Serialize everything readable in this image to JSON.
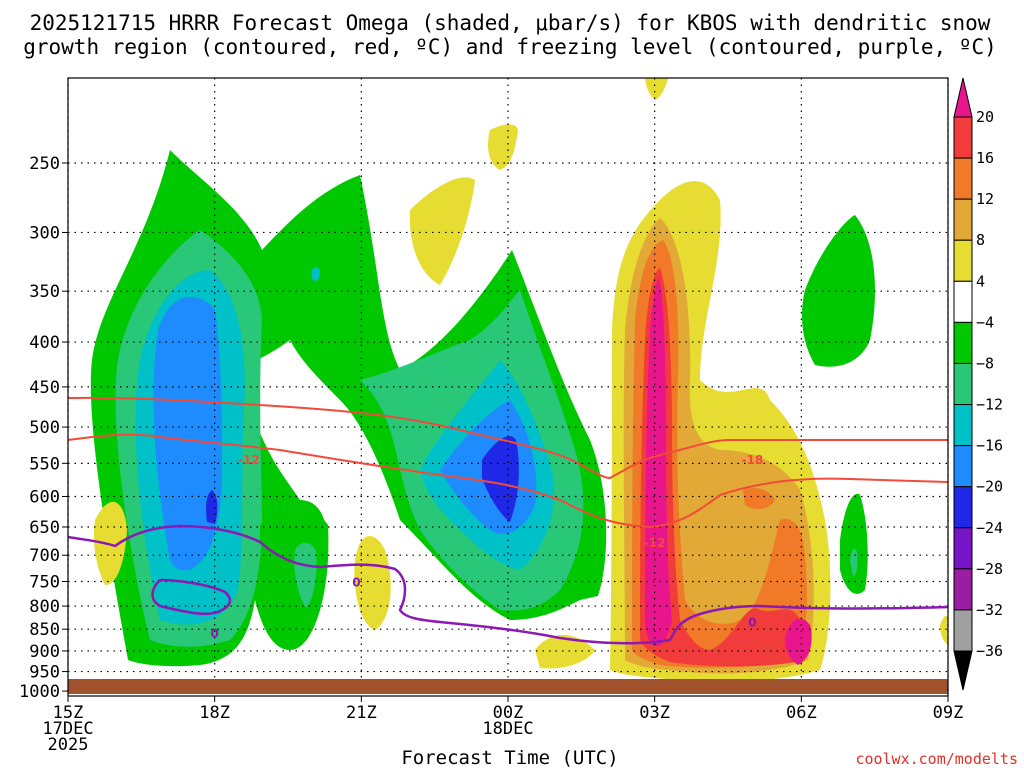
{
  "chart_data": {
    "type": "contour",
    "title": [
      "2025121715 HRRR Forecast Omega (shaded, μbar/s) for KBOS with dendritic snow",
      "growth region (contoured, red, ºC) and freezing level (contoured, purple, ºC)"
    ],
    "xlabel": "Forecast Time (UTC)",
    "ylabel": "",
    "credit": "coolwx.com/modelts",
    "x_ticks": [
      {
        "hour": 0,
        "lines": [
          "15Z",
          "17DEC",
          "2025"
        ]
      },
      {
        "hour": 3,
        "lines": [
          "18Z"
        ]
      },
      {
        "hour": 6,
        "lines": [
          "21Z"
        ]
      },
      {
        "hour": 9,
        "lines": [
          "00Z",
          "18DEC"
        ]
      },
      {
        "hour": 12,
        "lines": [
          "03Z"
        ]
      },
      {
        "hour": 15,
        "lines": [
          "06Z"
        ]
      },
      {
        "hour": 18,
        "lines": [
          "09Z"
        ]
      }
    ],
    "xlim": [
      0,
      18
    ],
    "y_ticks": [
      250,
      300,
      350,
      400,
      450,
      500,
      550,
      600,
      650,
      700,
      750,
      800,
      850,
      900,
      950,
      1000
    ],
    "ylim": [
      200,
      1013
    ],
    "yscale": "log",
    "colorbar": {
      "levels": [
        -36,
        -32,
        -28,
        -24,
        -20,
        -16,
        -12,
        -8,
        -4,
        4,
        8,
        12,
        16,
        20
      ],
      "labels": [
        "20",
        "16",
        "12",
        "8",
        "4",
        "−4",
        "−8",
        "−12",
        "−16",
        "−20",
        "−24",
        "−28",
        "−32",
        "−36"
      ],
      "colors": [
        {
          "range": "> 20",
          "color": "#e8158c"
        },
        {
          "range": "16 to 20",
          "color": "#f23c3c"
        },
        {
          "range": "12 to 16",
          "color": "#f07a28"
        },
        {
          "range": "8 to 12",
          "color": "#e2a936"
        },
        {
          "range": "4 to 8",
          "color": "#e6dc32"
        },
        {
          "range": "-4 to 4",
          "color": "#ffffff"
        },
        {
          "range": "-8 to -4",
          "color": "#00c800"
        },
        {
          "range": "-12 to -8",
          "color": "#28c878"
        },
        {
          "range": "-16 to -12",
          "color": "#00c0c8"
        },
        {
          "range": "-20 to -16",
          "color": "#1e8cff"
        },
        {
          "range": "-24 to -20",
          "color": "#1e28e6"
        },
        {
          "range": "-28 to -24",
          "color": "#7814c8"
        },
        {
          "range": "-32 to -28",
          "color": "#9c1ea0"
        },
        {
          "range": "-36 to -32",
          "color": "#a0a0a0"
        },
        {
          "range": "< -36",
          "color": "#000000"
        }
      ]
    },
    "contour_labels": [
      {
        "text": "-12",
        "color": "#f24a3a",
        "hour": 3.7,
        "p": 545
      },
      {
        "text": "-12",
        "color": "#f24a3a",
        "hour": 12.0,
        "p": 678
      },
      {
        "text": "-18",
        "color": "#f24a3a",
        "hour": 14.0,
        "p": 545
      },
      {
        "text": "0",
        "color": "#8c19b4",
        "hour": 5.9,
        "p": 752
      },
      {
        "text": "0",
        "color": "#8c19b4",
        "hour": 3.0,
        "p": 860
      },
      {
        "text": "0",
        "color": "#8c19b4",
        "hour": 14.0,
        "p": 835
      }
    ],
    "surface_color": "#a0522d",
    "omega_features": [
      {
        "kind": "descent column",
        "hour_range": [
          1.2,
          6.0
        ],
        "p_range": [
          260,
          950
        ],
        "min_value": -24
      },
      {
        "kind": "descent core",
        "hour_range": [
          7.0,
          10.0
        ],
        "p_range": [
          350,
          880
        ],
        "min_value": -24
      },
      {
        "kind": "ascent column",
        "hour_range": [
          10.8,
          13.3
        ],
        "p_range": [
          300,
          1000
        ],
        "max_value": 24
      },
      {
        "kind": "ascent secondary",
        "hour_range": [
          12.5,
          16.0
        ],
        "p_range": [
          520,
          990
        ],
        "max_value": 24
      }
    ]
  }
}
